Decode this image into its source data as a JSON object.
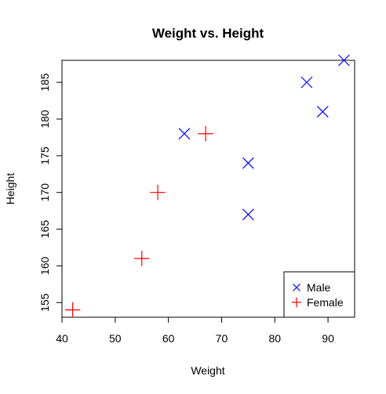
{
  "chart_data": {
    "type": "scatter",
    "title": "Weight vs. Height",
    "xlabel": "Weight",
    "ylabel": "Height",
    "xlim": [
      40,
      95
    ],
    "ylim": [
      153,
      188
    ],
    "xticks": [
      40,
      50,
      60,
      70,
      80,
      90
    ],
    "yticks": [
      155,
      160,
      165,
      170,
      175,
      180,
      185
    ],
    "legend_position": "bottom-right",
    "series": [
      {
        "name": "Male",
        "marker": "x",
        "color": "#0000ff",
        "points": [
          {
            "x": 63,
            "y": 178
          },
          {
            "x": 75,
            "y": 174
          },
          {
            "x": 75,
            "y": 167
          },
          {
            "x": 86,
            "y": 185
          },
          {
            "x": 89,
            "y": 181
          },
          {
            "x": 93,
            "y": 188
          }
        ]
      },
      {
        "name": "Female",
        "marker": "plus",
        "color": "#ff0000",
        "points": [
          {
            "x": 42,
            "y": 154
          },
          {
            "x": 55,
            "y": 161
          },
          {
            "x": 58,
            "y": 170
          },
          {
            "x": 67,
            "y": 178
          }
        ]
      }
    ]
  }
}
